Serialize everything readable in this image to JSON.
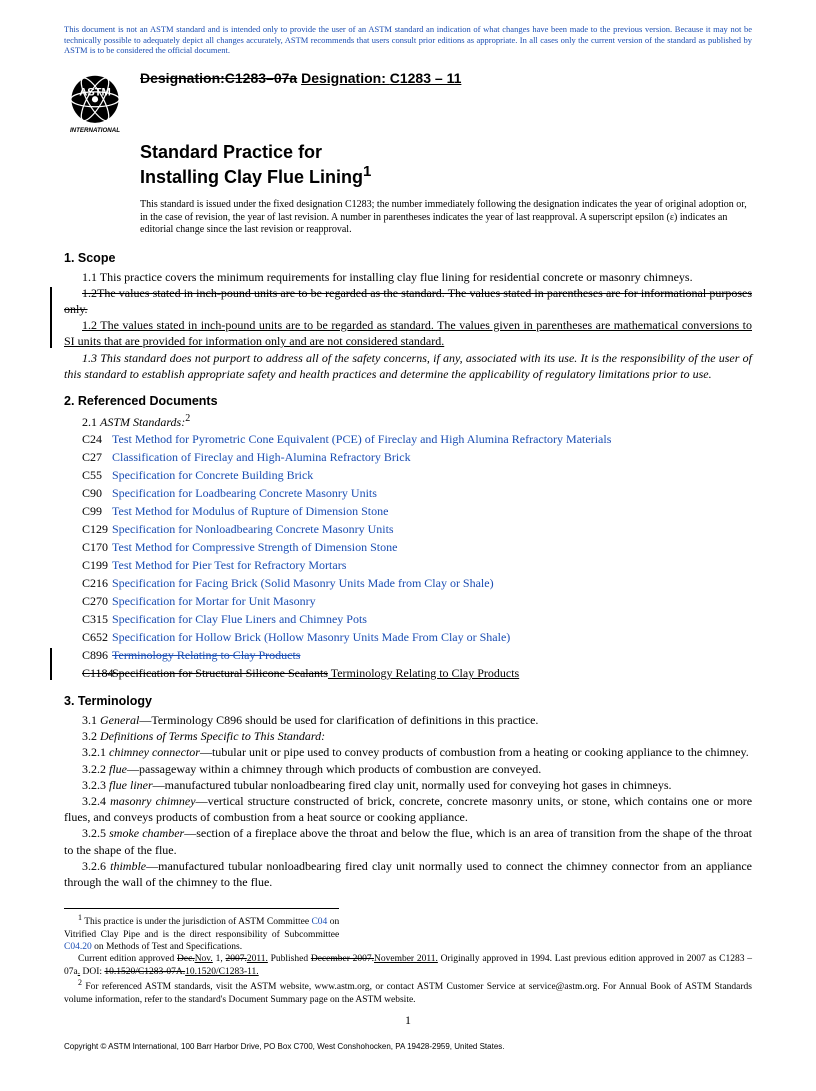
{
  "disclaimer": "This document is not an ASTM standard and is intended only to provide the user of an ASTM standard an indication of what changes have been made to the previous version. Because it may not be technically possible to adequately depict all changes accurately, ASTM recommends that users consult prior editions as appropriate. In all cases only the current version of the standard as published by ASTM is to be considered the official document.",
  "logo": {
    "top": "ASTM",
    "bottom": "INTERNATIONAL"
  },
  "designation": {
    "old_label": "Designation:",
    "old_code": "C1283–07a",
    "new_label": "Designation: ",
    "new_code": "C1283 – 11"
  },
  "title_line1": "Standard Practice for",
  "title_line2": "Installing Clay Flue Lining",
  "title_sup": "1",
  "issuance": "This standard is issued under the fixed designation C1283; the number immediately following the designation indicates the year of original adoption or, in the case of revision, the year of last revision. A number in parentheses indicates the year of last reapproval. A superscript epsilon (ε) indicates an editorial change since the last revision or reapproval.",
  "s1": {
    "head": "1. Scope",
    "p1": "1.1 This practice covers the minimum requirements for installing clay flue lining for residential concrete or masonry chimneys.",
    "p2_strike": "1.2The values stated in inch-pound units are to be regarded as the standard. The values stated in parentheses are for informational purposes only.",
    "p2_new": "1.2 The values stated in inch-pound units are to be regarded as standard. The values given in parentheses are mathematical conversions to SI units that are provided for information only and are not considered standard.",
    "p3": "1.3 This standard does not purport to address all of the safety concerns, if any, associated with its use. It is the responsibility of the user of this standard to establish appropriate safety and health practices and determine the applicability of regulatory limitations prior to use."
  },
  "s2": {
    "head": "2. Referenced Documents",
    "lead_num": "2.1 ",
    "lead_text": "ASTM Standards:",
    "lead_sup": "2",
    "refs": [
      {
        "code": "C24",
        "title": "Test Method for Pyrometric Cone Equivalent (PCE) of Fireclay and High Alumina Refractory Materials"
      },
      {
        "code": "C27",
        "title": "Classification of Fireclay and High-Alumina Refractory Brick"
      },
      {
        "code": "C55",
        "title": "Specification for Concrete Building Brick"
      },
      {
        "code": "C90",
        "title": "Specification for Loadbearing Concrete Masonry Units"
      },
      {
        "code": "C99",
        "title": "Test Method for Modulus of Rupture of Dimension Stone"
      },
      {
        "code": "C129",
        "title": "Specification for Nonloadbearing Concrete Masonry Units"
      },
      {
        "code": "C170",
        "title": "Test Method for Compressive Strength of Dimension Stone"
      },
      {
        "code": "C199",
        "title": "Test Method for Pier Test for Refractory Mortars"
      },
      {
        "code": "C216",
        "title": "Specification for Facing Brick (Solid Masonry Units Made from Clay or Shale)"
      },
      {
        "code": "C270",
        "title": "Specification for Mortar for Unit Masonry"
      },
      {
        "code": "C315",
        "title": "Specification for Clay Flue Liners and Chimney Pots"
      },
      {
        "code": "C652",
        "title": "Specification for Hollow Brick (Hollow Masonry Units Made From Clay or Shale)"
      }
    ],
    "ref_c896_code": "C896",
    "ref_c896_strike": "Terminology Relating to Clay Products",
    "ref_c1184_code": "C1184",
    "ref_c1184_strike": "Specification for Structural Silicone Sealants",
    "ref_c1184_new": " Terminology Relating to Clay Products"
  },
  "s3": {
    "head": "3. Terminology",
    "p1_a": "3.1 ",
    "p1_b": "General",
    "p1_c": "—Terminology C896 should be used for clarification of definitions in this practice.",
    "p2_a": "3.2 ",
    "p2_b": "Definitions of Terms Specific to This Standard:",
    "defs": [
      {
        "num": "3.2.1 ",
        "term": "chimney connector",
        "text": "—tubular unit or pipe used to convey products of combustion from a heating or cooking appliance to the chimney."
      },
      {
        "num": "3.2.2 ",
        "term": "flue",
        "text": "—passageway within a chimney through which products of combustion are conveyed."
      },
      {
        "num": "3.2.3 ",
        "term": "flue liner",
        "text": "—manufactured tubular nonloadbearing fired clay unit, normally used for conveying hot gases in chimneys."
      },
      {
        "num": "3.2.4 ",
        "term": "masonry chimney",
        "text": "—vertical structure constructed of brick, concrete, concrete masonry units, or stone, which contains one or more flues, and conveys products of combustion from a heat source or cooking appliance."
      },
      {
        "num": "3.2.5 ",
        "term": "smoke chamber",
        "text": "—section of a fireplace above the throat and below the flue, which is an area of transition from the shape of the throat to the shape of the flue."
      },
      {
        "num": "3.2.6 ",
        "term": "thimble",
        "text": "—manufactured tubular nonloadbearing fired clay unit normally used to connect the chimney connector from an appliance through the wall of the chimney to the flue."
      }
    ]
  },
  "footnotes": {
    "f1_a": " This practice is under the jurisdiction of ASTM Committee ",
    "f1_link1": "C04",
    "f1_b": " on Vitrified Clay Pipe and is the direct responsibility of Subcommittee ",
    "f1_link2": "C04.20",
    "f1_c": " on Methods of Test and Specifications.",
    "f1_line2_a": "Current edition approved ",
    "f1_line2_strike1": "Dec.",
    "f1_line2_und1": "Nov.",
    "f1_line2_b": " 1, ",
    "f1_line2_strike2": "2007.",
    "f1_line2_und2": "2011.",
    "f1_line2_c": " Published ",
    "f1_line2_strike3": "December 2007.",
    "f1_line2_und3": "November 2011.",
    "f1_line2_d": " Originally approved in 1994. Last previous edition approved in 2007 as C1283 – 07a",
    "f1_line2_und4": ".",
    "f1_line2_e": " DOI: ",
    "f1_line2_strike4": "10.1520/C1283-07A.",
    "f1_line2_und5": "10.1520/C1283-11.",
    "f2": " For referenced ASTM standards, visit the ASTM website, www.astm.org, or contact ASTM Customer Service at service@astm.org. For Annual Book of ASTM Standards volume information, refer to the standard's Document Summary page on the ASTM website."
  },
  "copyright": "Copyright © ASTM International, 100 Barr Harbor Drive, PO Box C700, West Conshohocken, PA 19428-2959, United States.",
  "pagenum": "1"
}
